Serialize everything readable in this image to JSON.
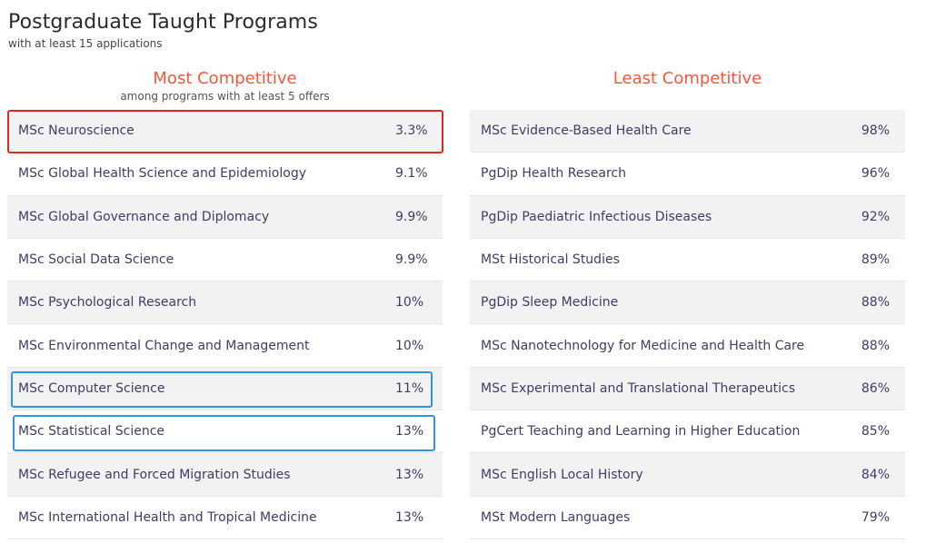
{
  "page": {
    "title": "Postgraduate Taught Programs",
    "subtitle": "with at least 15 applications"
  },
  "most_competitive": {
    "title": "Most Competitive",
    "subtitle": "among programs with at least 5 offers",
    "rows": [
      {
        "name": "MSc Neuroscience",
        "value": "3.3%"
      },
      {
        "name": "MSc Global Health Science and Epidemiology",
        "value": "9.1%"
      },
      {
        "name": "MSc Global Governance and Diplomacy",
        "value": "9.9%"
      },
      {
        "name": "MSc Social Data Science",
        "value": "9.9%"
      },
      {
        "name": "MSc Psychological Research",
        "value": "10%"
      },
      {
        "name": "MSc Environmental Change and Management",
        "value": "10%"
      },
      {
        "name": "MSc Computer Science",
        "value": "11%"
      },
      {
        "name": "MSc Statistical Science",
        "value": "13%"
      },
      {
        "name": "MSc Refugee and Forced Migration Studies",
        "value": "13%"
      },
      {
        "name": "MSc International Health and Tropical Medicine",
        "value": "13%"
      }
    ]
  },
  "least_competitive": {
    "title": "Least Competitive",
    "rows": [
      {
        "name": "MSc Evidence-Based Health Care",
        "value": "98%"
      },
      {
        "name": "PgDip Health Research",
        "value": "96%"
      },
      {
        "name": "PgDip Paediatric Infectious Diseases",
        "value": "92%"
      },
      {
        "name": "MSt Historical Studies",
        "value": "89%"
      },
      {
        "name": "PgDip Sleep Medicine",
        "value": "88%"
      },
      {
        "name": "MSc Nanotechnology for Medicine and Health Care",
        "value": "88%"
      },
      {
        "name": "MSc Experimental and Translational Therapeutics",
        "value": "86%"
      },
      {
        "name": "PgCert Teaching and Learning in Higher Education",
        "value": "85%"
      },
      {
        "name": "MSc English Local History",
        "value": "84%"
      },
      {
        "name": "MSt Modern Languages",
        "value": "79%"
      }
    ]
  },
  "highlights": {
    "red_color": "#e1261c",
    "blue_color": "#2e96e0"
  }
}
